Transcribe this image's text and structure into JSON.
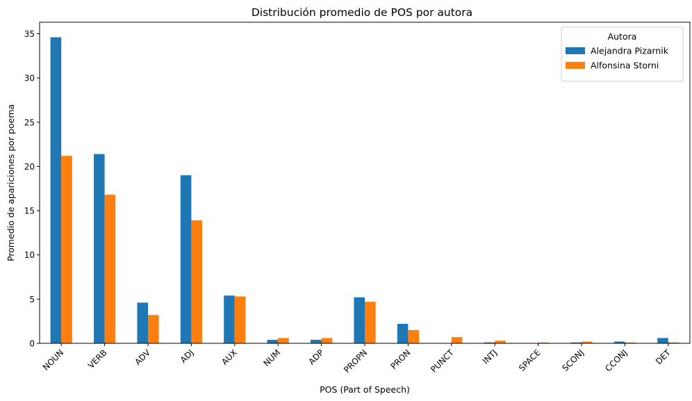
{
  "chart_data": {
    "type": "bar",
    "title": "Distribución promedio de POS por autora",
    "xlabel": "POS (Part of Speech)",
    "ylabel": "Promedio de apariciones por poema",
    "categories": [
      "NOUN",
      "VERB",
      "ADV",
      "ADJ",
      "AUX",
      "NUM",
      "ADP",
      "PROPN",
      "PRON",
      "PUNCT",
      "INTJ",
      "SPACE",
      "SCONJ",
      "CCONJ",
      "DET"
    ],
    "series": [
      {
        "name": "Alejandra Pizarnik",
        "color": "#1f77b4",
        "values": [
          34.6,
          21.4,
          4.6,
          19.0,
          5.4,
          0.4,
          0.4,
          5.2,
          2.2,
          0.0,
          0.1,
          0.0,
          0.1,
          0.2,
          0.6
        ]
      },
      {
        "name": "Alfonsina Storni",
        "color": "#ff7f0e",
        "values": [
          21.2,
          16.8,
          3.2,
          13.9,
          5.3,
          0.6,
          0.6,
          4.7,
          1.5,
          0.7,
          0.3,
          0.1,
          0.2,
          0.1,
          0.1
        ]
      }
    ],
    "ylim": [
      0,
      36.3
    ],
    "yticks": [
      0,
      5,
      10,
      15,
      20,
      25,
      30,
      35
    ],
    "legend": {
      "title": "Autora",
      "position": "top-right"
    },
    "grid": false
  }
}
